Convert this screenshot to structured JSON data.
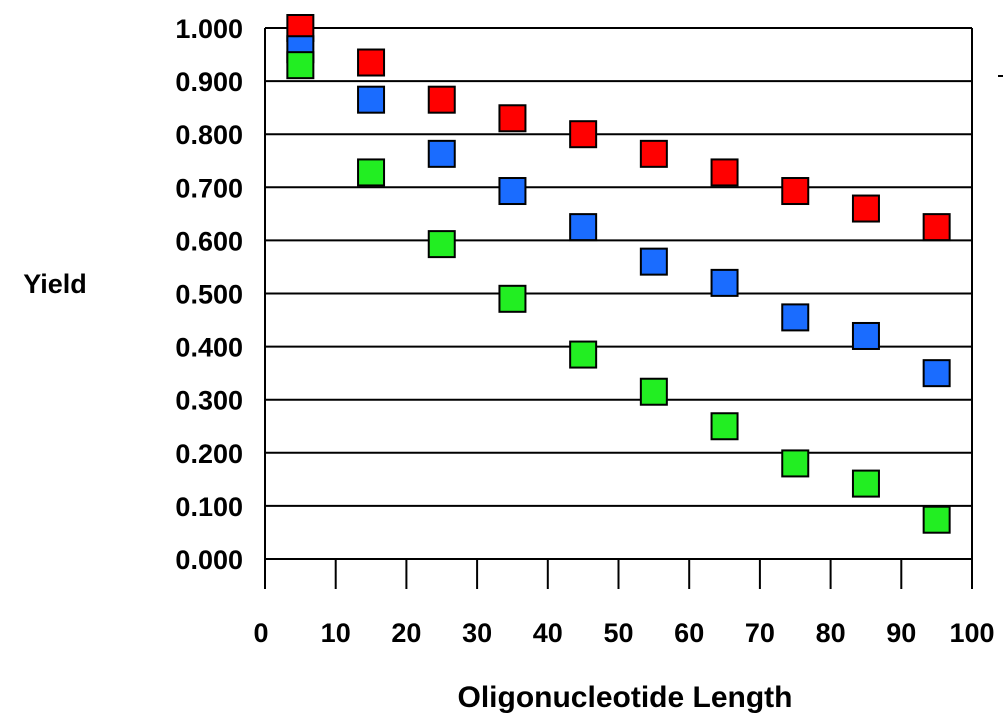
{
  "chart_data": {
    "type": "scatter",
    "title": "",
    "xlabel": "Oligonucleotide Length",
    "ylabel": "Yield",
    "xlim": [
      0,
      100
    ],
    "ylim": [
      0,
      1
    ],
    "x_ticks": [
      "0",
      "10",
      "20",
      "30",
      "40",
      "50",
      "60",
      "70",
      "80",
      "90",
      "100"
    ],
    "y_ticks": [
      "0.000",
      "0.100",
      "0.200",
      "0.300",
      "0.400",
      "0.500",
      "0.600",
      "0.700",
      "0.800",
      "0.900",
      "1.000"
    ],
    "grid": "horizontal",
    "marker": "square",
    "x": [
      5,
      15,
      25,
      35,
      45,
      55,
      65,
      75,
      85,
      95
    ],
    "series": [
      {
        "color": "#ff0000",
        "values": [
          1.0,
          0.935,
          0.865,
          0.83,
          0.8,
          0.763,
          0.728,
          0.693,
          0.66,
          0.625
        ]
      },
      {
        "color": "#1a6cff",
        "values": [
          0.96,
          0.865,
          0.763,
          0.693,
          0.625,
          0.56,
          0.52,
          0.455,
          0.42,
          0.35
        ]
      },
      {
        "color": "#22ee22",
        "values": [
          0.93,
          0.728,
          0.593,
          0.49,
          0.385,
          0.315,
          0.25,
          0.18,
          0.142,
          0.074
        ]
      }
    ]
  }
}
